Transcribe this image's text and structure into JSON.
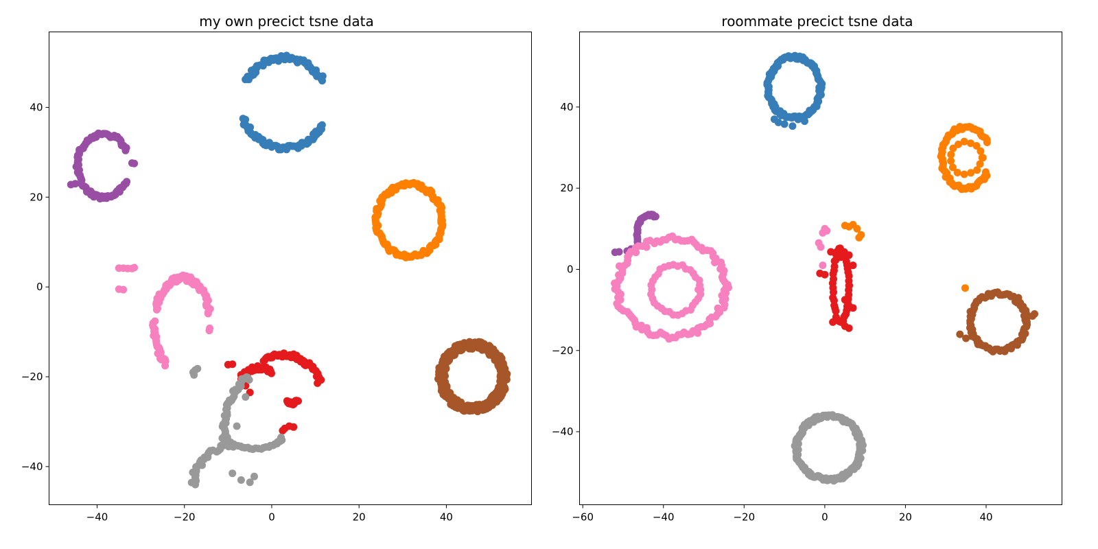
{
  "chart_data": [
    {
      "type": "scatter",
      "title": "my own precict tsne data",
      "xlabel": "",
      "ylabel": "",
      "xlim": [
        -51,
        59.5
      ],
      "ylim": [
        -48.5,
        56.8
      ],
      "xticks": [
        -40,
        -20,
        0,
        20,
        40
      ],
      "yticks": [
        -40,
        -20,
        0,
        20,
        40
      ],
      "xtick_labels": [
        "−40",
        "−20",
        "0",
        "20",
        "40"
      ],
      "ytick_labels": [
        "−40",
        "−20",
        "0",
        "20",
        "40"
      ],
      "grid": false,
      "series": [
        {
          "color": "#377eb8",
          "arcs": [
            {
              "cx": 3,
              "cy": 41,
              "rx": 10,
              "ry": 10,
              "a0": 200,
              "a1": 330,
              "n": 55
            },
            {
              "cx": 3,
              "cy": 41,
              "rx": 10,
              "ry": 10,
              "a0": 30,
              "a1": 150,
              "n": 55
            }
          ]
        },
        {
          "color": "#984ea3",
          "arcs": [
            {
              "cx": -38.5,
              "cy": 27,
              "rx": 6,
              "ry": 7,
              "a0": 30,
              "a1": 330,
              "n": 90
            }
          ],
          "points": [
            [
              -46,
              22.8
            ],
            [
              -45,
              23
            ],
            [
              -32,
              27.6
            ],
            [
              -31.5,
              27.5
            ]
          ]
        },
        {
          "color": "#ff7f00",
          "arcs": [
            {
              "cx": 31.5,
              "cy": 14.8,
              "rx": 7.5,
              "ry": 8,
              "a0": 0,
              "a1": 360,
              "n": 110
            }
          ]
        },
        {
          "color": "#f781bf",
          "arcs": [
            {
              "cx": -20.5,
              "cy": -8.5,
              "rx": 6.5,
              "ry": 10.5,
              "a0": 15,
              "a1": 160,
              "n": 70
            },
            {
              "cx": -20.5,
              "cy": -8.5,
              "rx": 6.5,
              "ry": 10.5,
              "a0": 175,
              "a1": 235,
              "n": 25
            }
          ],
          "points": [
            [
              -35,
              4.2
            ],
            [
              -34,
              4.2
            ],
            [
              -33,
              4.1
            ],
            [
              -32,
              4.1
            ],
            [
              -31.5,
              4.3
            ],
            [
              -35,
              -0.5
            ],
            [
              -34,
              -0.6
            ],
            [
              -14.2,
              -9.2
            ],
            [
              -14.3,
              -9.7
            ]
          ]
        },
        {
          "color": "#a65628",
          "arcs": [
            {
              "cx": 46,
              "cy": -20,
              "rx": 7.5,
              "ry": 7.5,
              "a0": 0,
              "a1": 360,
              "n": 160
            },
            {
              "cx": 46,
              "cy": -20,
              "rx": 6.6,
              "ry": 6.6,
              "a0": 0,
              "a1": 360,
              "n": 120
            }
          ]
        },
        {
          "color": "#e41a1c",
          "arcs": [
            {
              "cx": 2.5,
              "cy": -24.5,
              "rx": 9,
              "ry": 9.5,
              "a0": 20,
              "a1": 120,
              "n": 45
            },
            {
              "cx": -3,
              "cy": -26,
              "rx": 6,
              "ry": 8,
              "a0": 60,
              "a1": 130,
              "n": 25
            },
            {
              "cx": 4.5,
              "cy": -20,
              "rx": 3,
              "ry": 6,
              "a0": 250,
              "a1": 300,
              "n": 12
            }
          ],
          "points": [
            [
              -10,
              -17.3
            ],
            [
              -9,
              -17.2
            ],
            [
              -7,
              -20.5
            ],
            [
              -6,
              -22
            ],
            [
              -5,
              -23.5
            ],
            [
              3,
              -31.5
            ],
            [
              4,
              -31
            ],
            [
              5,
              -31.2
            ],
            [
              2.5,
              -32
            ]
          ]
        },
        {
          "color": "#999999",
          "arcs": [
            {
              "cx": -4,
              "cy": -33,
              "rx": 7,
              "ry": 13,
              "a0": 100,
              "a1": 185,
              "n": 40
            },
            {
              "cx": -4,
              "cy": -33,
              "rx": 6.5,
              "ry": 3,
              "a0": 190,
              "a1": 350,
              "n": 30
            },
            {
              "cx": -7,
              "cy": -44,
              "rx": 11,
              "ry": 9,
              "a0": 100,
              "a1": 180,
              "n": 30
            }
          ],
          "points": [
            [
              -18,
              -19
            ],
            [
              -17.5,
              -18.5
            ],
            [
              -17,
              -18.2
            ],
            [
              -17.8,
              -19.6
            ],
            [
              -6,
              -24.5
            ],
            [
              -8,
              -31
            ],
            [
              -9,
              -41.5
            ],
            [
              -7,
              -43
            ],
            [
              -5,
              -43.5
            ],
            [
              -4,
              -42.2
            ]
          ]
        }
      ]
    },
    {
      "type": "scatter",
      "title": "roommate precict tsne data",
      "xlabel": "",
      "ylabel": "",
      "xlim": [
        -60.8,
        58.8
      ],
      "ylim": [
        -58,
        58.5
      ],
      "xticks": [
        -60,
        -40,
        -20,
        0,
        20,
        40
      ],
      "yticks": [
        -40,
        -20,
        0,
        20,
        40
      ],
      "xtick_labels": [
        "−60",
        "−40",
        "−20",
        "0",
        "20",
        "40"
      ],
      "ytick_labels": [
        "−40",
        "−20",
        "0",
        "20",
        "40"
      ],
      "grid": false,
      "series": [
        {
          "color": "#377eb8",
          "arcs": [
            {
              "cx": -7.5,
              "cy": 44.8,
              "rx": 6.5,
              "ry": 7.5,
              "a0": 0,
              "a1": 360,
              "n": 110
            }
          ],
          "points": [
            [
              -12.5,
              37
            ],
            [
              -11.5,
              36.2
            ],
            [
              -10,
              35.8
            ],
            [
              -8,
              35.3
            ],
            [
              -5,
              36.5
            ]
          ]
        },
        {
          "color": "#ff7f00",
          "arcs": [
            {
              "cx": 35,
              "cy": 27.5,
              "rx": 6,
              "ry": 7.5,
              "a0": 30,
              "a1": 330,
              "n": 70
            },
            {
              "cx": 35,
              "cy": 27.5,
              "rx": 4,
              "ry": 4,
              "a0": 0,
              "a1": 360,
              "n": 16
            }
          ],
          "points": [
            [
              6,
              10.5
            ],
            [
              7,
              11
            ],
            [
              8,
              10
            ],
            [
              9,
              8.5
            ],
            [
              8.5,
              7.8
            ],
            [
              5,
              10.8
            ],
            [
              34.8,
              -4.6
            ]
          ]
        },
        {
          "color": "#984ea3",
          "arcs": [
            {
              "cx": -43.5,
              "cy": 8.5,
              "rx": 3,
              "ry": 5,
              "a0": 60,
              "a1": 200,
              "n": 22
            }
          ],
          "points": [
            [
              -52,
              4.2
            ],
            [
              -51,
              4.3
            ],
            [
              -49,
              4.5
            ],
            [
              -48,
              5
            ]
          ]
        },
        {
          "color": "#f781bf",
          "arcs": [
            {
              "cx": -38,
              "cy": -4.5,
              "rx": 13.5,
              "ry": 12,
              "a0": 0,
              "a1": 360,
              "n": 110
            },
            {
              "cx": -37,
              "cy": -5,
              "rx": 6,
              "ry": 6,
              "a0": 0,
              "a1": 360,
              "n": 35
            }
          ],
          "points": [
            [
              0,
              10
            ],
            [
              0.5,
              9.5
            ],
            [
              -0.5,
              9
            ],
            [
              -1.5,
              6.5
            ],
            [
              -1,
              5.5
            ],
            [
              -0.5,
              1
            ]
          ]
        },
        {
          "color": "#e41a1c",
          "arcs": [
            {
              "cx": 4,
              "cy": -4,
              "rx": 2,
              "ry": 9,
              "a0": 0,
              "a1": 360,
              "n": 50
            }
          ],
          "points": [
            [
              1.5,
              4.3
            ],
            [
              4,
              3
            ],
            [
              6,
              3.5
            ],
            [
              7,
              1
            ],
            [
              -1.2,
              -1
            ],
            [
              0,
              -1.3
            ],
            [
              5,
              -7.5
            ],
            [
              6,
              -9
            ],
            [
              7,
              -9.5
            ],
            [
              4,
              -13
            ],
            [
              5,
              -14
            ],
            [
              6,
              -14.5
            ],
            [
              2,
              -13
            ]
          ]
        },
        {
          "color": "#a65628",
          "arcs": [
            {
              "cx": 43,
              "cy": -13,
              "rx": 7,
              "ry": 7,
              "a0": 0,
              "a1": 360,
              "n": 80
            }
          ],
          "points": [
            [
              33.5,
              -16
            ],
            [
              35,
              -17
            ],
            [
              36.5,
              -16.5
            ],
            [
              38,
              -18.5
            ],
            [
              52,
              -11
            ],
            [
              51.5,
              -11.5
            ],
            [
              48,
              -7
            ]
          ]
        },
        {
          "color": "#999999",
          "arcs": [
            {
              "cx": 1,
              "cy": -44,
              "rx": 8,
              "ry": 7.8,
              "a0": 0,
              "a1": 360,
              "n": 160
            }
          ]
        }
      ]
    }
  ]
}
